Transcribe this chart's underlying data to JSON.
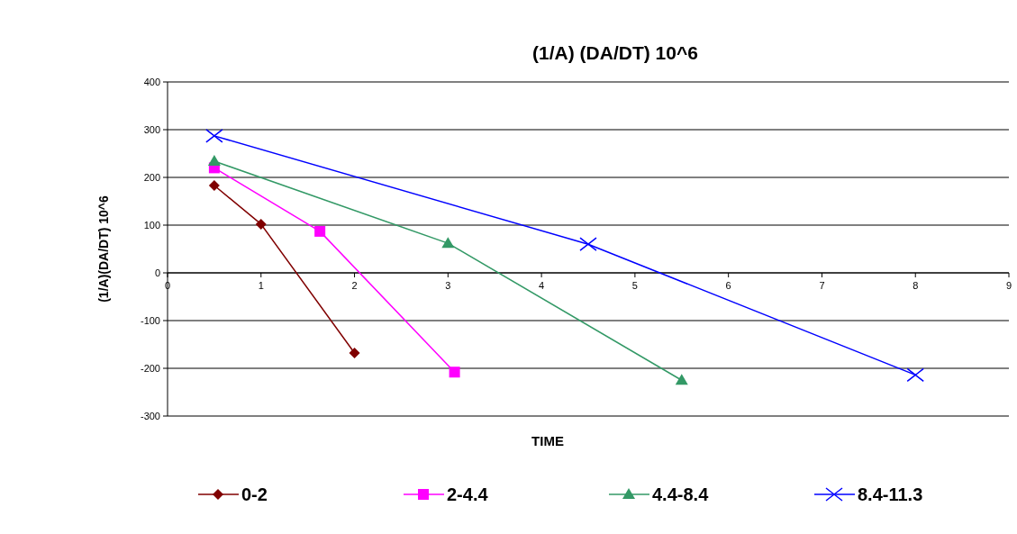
{
  "chart_data": {
    "type": "line",
    "title": "(1/A) (DA/DT) 10^6",
    "xlabel": "TIME",
    "ylabel": "(1/A)(DA/DT) 10^6",
    "xlim": [
      0,
      9
    ],
    "xticks": [
      0,
      1,
      2,
      3,
      4,
      5,
      6,
      7,
      8,
      9
    ],
    "ylim": [
      -300,
      400
    ],
    "yticks": [
      -300,
      -200,
      -100,
      0,
      100,
      200,
      300,
      400
    ],
    "grid": "y",
    "legend": "bottom",
    "series": [
      {
        "name": "0-2",
        "color": "#800000",
        "marker": "diamond",
        "x": [
          0.5,
          1,
          2
        ],
        "values": [
          183,
          102,
          -168
        ]
      },
      {
        "name": "2-4.4",
        "color": "#ff00ff",
        "marker": "square",
        "x": [
          0.5,
          1.63,
          3.07
        ],
        "values": [
          220,
          87,
          -208
        ]
      },
      {
        "name": "4.4-8.4",
        "color": "#339966",
        "marker": "triangle",
        "x": [
          0.5,
          3,
          5.5
        ],
        "values": [
          234,
          62,
          -225
        ]
      },
      {
        "name": "8.4-11.3",
        "color": "#0000ff",
        "marker": "cross",
        "x": [
          0.5,
          4.5,
          8
        ],
        "values": [
          287,
          60,
          -214
        ]
      }
    ]
  }
}
